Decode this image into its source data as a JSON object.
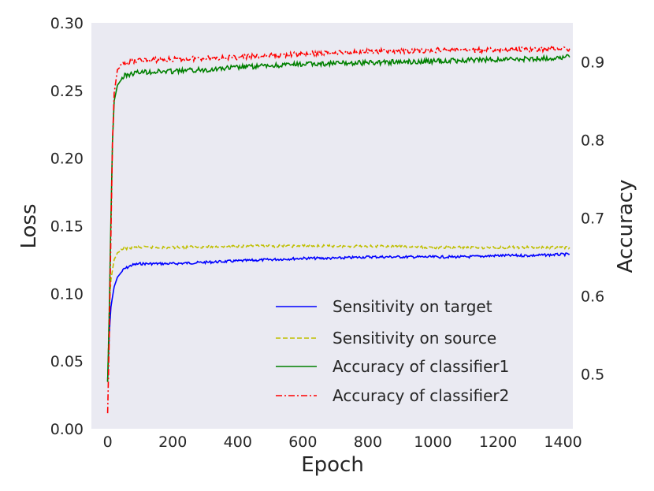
{
  "chart_data": {
    "type": "line",
    "xlabel": "Epoch",
    "ylabel_left": "Loss",
    "ylabel_right": "Accuracy",
    "x_ticks": [
      0,
      200,
      400,
      600,
      800,
      1000,
      1200,
      1400
    ],
    "x_tick_labels": [
      "0",
      "200",
      "400",
      "600",
      "800",
      "1000",
      "1200",
      "1400"
    ],
    "xlim": [
      -50,
      1430
    ],
    "y_left_ticks": [
      0.0,
      0.05,
      0.1,
      0.15,
      0.2,
      0.25,
      0.3
    ],
    "y_left_tick_labels": [
      "0.00",
      "0.05",
      "0.10",
      "0.15",
      "0.20",
      "0.25",
      "0.30"
    ],
    "ylim_left": [
      0.0,
      0.3
    ],
    "y_right_ticks": [
      0.5,
      0.6,
      0.7,
      0.8,
      0.9
    ],
    "y_right_tick_labels": [
      "0.5",
      "0.6",
      "0.7",
      "0.8",
      "0.9"
    ],
    "ylim_right": [
      0.43,
      0.95
    ],
    "grid": false,
    "legend_position": "lower-right",
    "series": [
      {
        "name": "Sensitivity on target",
        "axis": "left",
        "color": "#0000ff",
        "style": "solid",
        "points": [
          [
            0,
            0.035
          ],
          [
            5,
            0.07
          ],
          [
            10,
            0.09
          ],
          [
            20,
            0.105
          ],
          [
            30,
            0.112
          ],
          [
            50,
            0.118
          ],
          [
            75,
            0.121
          ],
          [
            100,
            0.122
          ],
          [
            200,
            0.122
          ],
          [
            300,
            0.123
          ],
          [
            400,
            0.124
          ],
          [
            500,
            0.125
          ],
          [
            600,
            0.126
          ],
          [
            700,
            0.126
          ],
          [
            800,
            0.127
          ],
          [
            900,
            0.127
          ],
          [
            1000,
            0.127
          ],
          [
            1100,
            0.127
          ],
          [
            1200,
            0.128
          ],
          [
            1300,
            0.128
          ],
          [
            1420,
            0.129
          ]
        ]
      },
      {
        "name": "Sensitivity on source",
        "axis": "left",
        "color": "#bfbf00",
        "style": "dashed",
        "points": [
          [
            0,
            0.035
          ],
          [
            5,
            0.09
          ],
          [
            10,
            0.11
          ],
          [
            20,
            0.125
          ],
          [
            30,
            0.13
          ],
          [
            50,
            0.133
          ],
          [
            75,
            0.134
          ],
          [
            100,
            0.134
          ],
          [
            200,
            0.134
          ],
          [
            400,
            0.135
          ],
          [
            600,
            0.135
          ],
          [
            800,
            0.135
          ],
          [
            1000,
            0.134
          ],
          [
            1200,
            0.134
          ],
          [
            1420,
            0.134
          ]
        ]
      },
      {
        "name": "Accuracy of classifier1",
        "axis": "right",
        "color": "#008000",
        "style": "solid",
        "points": [
          [
            0,
            0.49
          ],
          [
            5,
            0.58
          ],
          [
            10,
            0.7
          ],
          [
            15,
            0.8
          ],
          [
            20,
            0.85
          ],
          [
            30,
            0.87
          ],
          [
            50,
            0.882
          ],
          [
            75,
            0.885
          ],
          [
            100,
            0.887
          ],
          [
            200,
            0.888
          ],
          [
            300,
            0.89
          ],
          [
            400,
            0.893
          ],
          [
            500,
            0.895
          ],
          [
            600,
            0.897
          ],
          [
            700,
            0.898
          ],
          [
            800,
            0.899
          ],
          [
            900,
            0.9
          ],
          [
            1000,
            0.901
          ],
          [
            1100,
            0.902
          ],
          [
            1200,
            0.903
          ],
          [
            1300,
            0.904
          ],
          [
            1420,
            0.906
          ]
        ]
      },
      {
        "name": "Accuracy of classifier2",
        "axis": "right",
        "color": "#ff0000",
        "style": "dashdot",
        "points": [
          [
            0,
            0.45
          ],
          [
            5,
            0.55
          ],
          [
            10,
            0.68
          ],
          [
            15,
            0.8
          ],
          [
            20,
            0.86
          ],
          [
            30,
            0.89
          ],
          [
            50,
            0.898
          ],
          [
            75,
            0.9
          ],
          [
            100,
            0.902
          ],
          [
            200,
            0.903
          ],
          [
            300,
            0.905
          ],
          [
            400,
            0.906
          ],
          [
            500,
            0.908
          ],
          [
            600,
            0.91
          ],
          [
            700,
            0.912
          ],
          [
            800,
            0.913
          ],
          [
            900,
            0.914
          ],
          [
            1000,
            0.915
          ],
          [
            1100,
            0.915
          ],
          [
            1200,
            0.915
          ],
          [
            1300,
            0.916
          ],
          [
            1420,
            0.917
          ]
        ]
      }
    ]
  }
}
